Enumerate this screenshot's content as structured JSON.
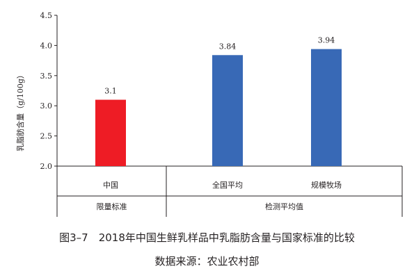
{
  "chart_data": {
    "type": "bar",
    "ylabel": "乳脂肪含量（g/100g）",
    "ylim": [
      2.0,
      4.5
    ],
    "yticks": [
      "2.0",
      "2.5",
      "3.0",
      "3.5",
      "4.0",
      "4.5"
    ],
    "grid": false,
    "categories": [
      "中国",
      "全国平均",
      "规模牧场"
    ],
    "values": [
      3.1,
      3.84,
      3.94
    ],
    "data_labels": [
      "3.1",
      "3.84",
      "3.94"
    ],
    "bar_colors": [
      "#ee1c25",
      "#3869b6",
      "#3869b6"
    ],
    "groups": [
      {
        "label": "限量标准",
        "categories": [
          "中国"
        ]
      },
      {
        "label": "检测平均值",
        "categories": [
          "全国平均",
          "规模牧场"
        ]
      }
    ]
  },
  "figure": {
    "title": "图3–7　2018年中国生鲜乳样品中乳脂肪含量与国家标准的比较",
    "source": "数据来源：农业农村部"
  }
}
